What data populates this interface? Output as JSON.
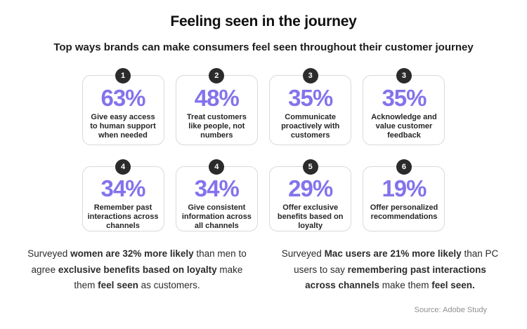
{
  "header": {
    "title": "Feeling seen in the journey",
    "subtitle": "Top ways brands can make consumers feel seen throughout their customer journey"
  },
  "cards": [
    {
      "badge": "1",
      "percent": "63%",
      "description": "Give easy access to human support when needed"
    },
    {
      "badge": "2",
      "percent": "48%",
      "description": "Treat customers like people, not numbers"
    },
    {
      "badge": "3",
      "percent": "35%",
      "description": "Communicate proactively with customers"
    },
    {
      "badge": "3",
      "percent": "35%",
      "description": "Acknowledge and value customer feedback"
    },
    {
      "badge": "4",
      "percent": "34%",
      "description": "Remember past interactions across channels"
    },
    {
      "badge": "4",
      "percent": "34%",
      "description": "Give consistent information across all channels"
    },
    {
      "badge": "5",
      "percent": "29%",
      "description": "Offer exclusive benefits based on loyalty"
    },
    {
      "badge": "6",
      "percent": "19%",
      "description": "Offer personalized recommendations"
    }
  ],
  "insights": [
    {
      "segments": [
        "Surveyed ",
        "women are 32% more likely",
        " than men to agree ",
        "exclusive benefits based on loyalty",
        " make them ",
        "feel seen",
        " as customers."
      ]
    },
    {
      "segments": [
        "Surveyed ",
        "Mac users are 21% more likely",
        " than PC users to say ",
        "remembering past interactions across channels",
        " make them ",
        "feel seen."
      ]
    }
  ],
  "footer": {
    "source": "Source: Adobe Study"
  },
  "colors": {
    "accent_purple": "#8373ec",
    "badge_black": "#2b2b2b",
    "card_border": "#ddd8d8",
    "source_gray": "#8f8f8f"
  },
  "chart_data": {
    "type": "table",
    "title": "Feeling seen in the journey",
    "subtitle": "Top ways brands can make consumers feel seen throughout their customer journey",
    "categories": [
      "Give easy access to human support when needed",
      "Treat customers like people, not numbers",
      "Communicate proactively with customers",
      "Acknowledge and value customer feedback",
      "Remember past interactions across channels",
      "Give consistent information across all channels",
      "Offer exclusive benefits based on loyalty",
      "Offer personalized recommendations"
    ],
    "values": [
      63,
      48,
      35,
      35,
      34,
      34,
      29,
      19
    ],
    "ranks": [
      1,
      2,
      3,
      3,
      4,
      4,
      5,
      6
    ],
    "unit": "%",
    "source": "Source: Adobe Study"
  }
}
